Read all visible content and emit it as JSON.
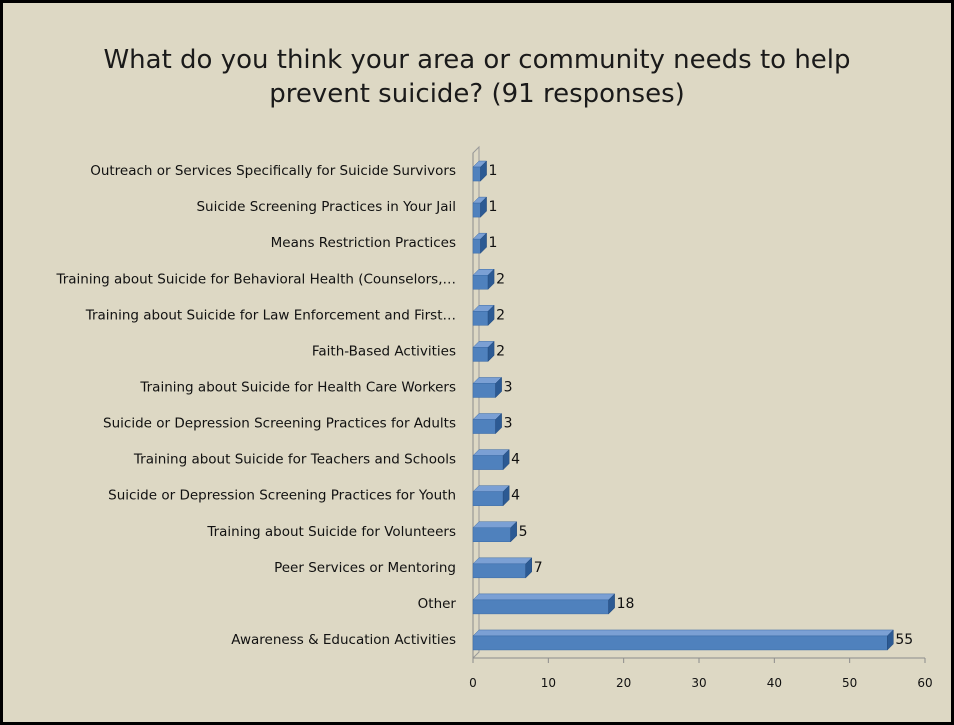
{
  "chart_data": {
    "type": "bar",
    "orientation": "horizontal",
    "title_lines": [
      "What do you think your area or community needs to help",
      "prevent suicide? (91 responses)"
    ],
    "categories": [
      "Outreach or Services Specifically for Suicide Survivors",
      "Suicide Screening Practices in Your Jail",
      "Means Restriction Practices",
      "Training about Suicide for Behavioral Health (Counselors,…",
      "Training about Suicide for Law Enforcement and First…",
      "Faith-Based Activities",
      "Training about Suicide for Health Care Workers",
      "Suicide or Depression Screening Practices for Adults",
      "Training about Suicide for Teachers and Schools",
      "Suicide or Depression Screening Practices for Youth",
      "Training about Suicide for Volunteers",
      "Peer Services or Mentoring",
      "Other",
      "Awareness & Education Activities"
    ],
    "values": [
      1,
      1,
      1,
      2,
      2,
      2,
      3,
      3,
      4,
      4,
      5,
      7,
      18,
      55
    ],
    "data_labels": [
      "1",
      "1",
      "1",
      "2",
      "2",
      "2",
      "3",
      "3",
      "4",
      "4",
      "5",
      "7",
      "18",
      "55"
    ],
    "xlim": [
      0,
      60
    ],
    "x_ticks": [
      "0",
      "10",
      "20",
      "30",
      "40",
      "50",
      "60"
    ],
    "grid": false,
    "legend": "none",
    "colors": {
      "bar_front": "#4f81bd",
      "bar_top": "#7ba0d4",
      "bar_side": "#2c5a93",
      "background": "#ddd8c4",
      "frame": "#000000"
    }
  }
}
